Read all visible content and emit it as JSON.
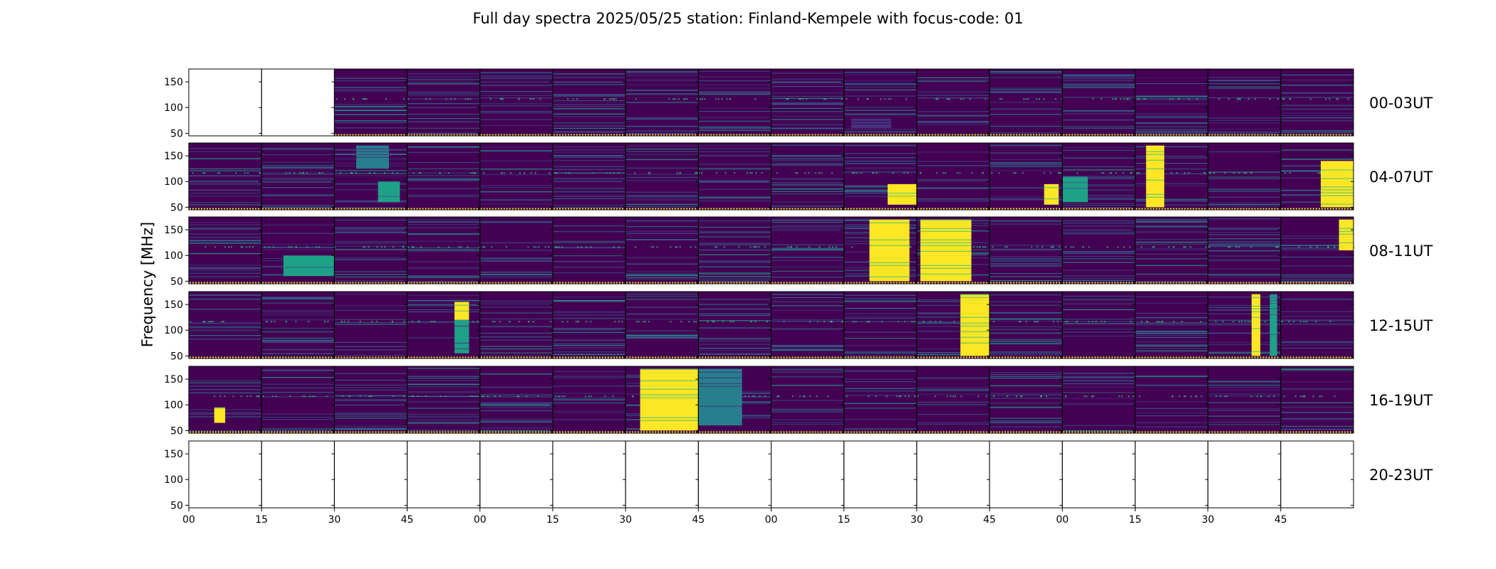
{
  "chart_data": {
    "type": "heatmap",
    "title": "Full day spectra 2025/05/25 station: Finland-Kempele with focus-code: 01",
    "ylabel": "Frequency [MHz]",
    "ylim": [
      45,
      175
    ],
    "y_ticks": [
      "150",
      "100",
      "50"
    ],
    "y_tick_values": [
      150,
      100,
      50
    ],
    "x_ticks": [
      "00",
      "15",
      "30",
      "45",
      "00",
      "15",
      "30",
      "45",
      "00",
      "15",
      "30",
      "45",
      "00",
      "15",
      "30",
      "45"
    ],
    "colormap": "viridis",
    "colors": {
      "low": "#440154",
      "mid": "#31688e",
      "teal": "#21918c",
      "green": "#35b779",
      "high": "#fde725"
    },
    "rows": [
      {
        "label": "00-03UT",
        "panels": [
          0,
          0,
          1,
          1,
          1,
          1,
          1,
          1,
          1,
          1,
          1,
          1,
          1,
          1,
          1,
          1
        ],
        "bursts": [
          {
            "panel": 9,
            "start": 0.1,
            "end": 0.65,
            "fmin": 60,
            "fmax": 80,
            "intensity": 0.15
          }
        ]
      },
      {
        "label": "04-07UT",
        "panels": [
          1,
          1,
          1,
          1,
          1,
          1,
          1,
          1,
          1,
          1,
          1,
          1,
          1,
          1,
          1,
          1
        ],
        "bursts": [
          {
            "panel": 2,
            "start": 0.3,
            "end": 0.75,
            "fmin": 125,
            "fmax": 170,
            "intensity": 0.45
          },
          {
            "panel": 2,
            "start": 0.6,
            "end": 0.9,
            "fmin": 60,
            "fmax": 100,
            "intensity": 0.55
          },
          {
            "panel": 9,
            "start": 0.6,
            "end": 1.0,
            "fmin": 55,
            "fmax": 95,
            "intensity": 1.0
          },
          {
            "panel": 11,
            "start": 0.75,
            "end": 0.95,
            "fmin": 55,
            "fmax": 95,
            "intensity": 1.0
          },
          {
            "panel": 12,
            "start": 0.0,
            "end": 0.35,
            "fmin": 60,
            "fmax": 110,
            "intensity": 0.55
          },
          {
            "panel": 13,
            "start": 0.15,
            "end": 0.4,
            "fmin": 50,
            "fmax": 170,
            "intensity": 1.0
          },
          {
            "panel": 15,
            "start": 0.55,
            "end": 1.0,
            "fmin": 50,
            "fmax": 140,
            "intensity": 1.0
          }
        ]
      },
      {
        "label": "08-11UT",
        "panels": [
          1,
          1,
          1,
          1,
          1,
          1,
          1,
          1,
          1,
          1,
          1,
          1,
          1,
          1,
          1,
          1
        ],
        "bursts": [
          {
            "panel": 1,
            "start": 0.3,
            "end": 1.0,
            "fmin": 60,
            "fmax": 100,
            "intensity": 0.6
          },
          {
            "panel": 9,
            "start": 0.35,
            "end": 0.9,
            "fmin": 50,
            "fmax": 170,
            "intensity": 1.0
          },
          {
            "panel": 10,
            "start": 0.05,
            "end": 0.75,
            "fmin": 50,
            "fmax": 170,
            "intensity": 1.0
          },
          {
            "panel": 15,
            "start": 0.8,
            "end": 1.0,
            "fmin": 110,
            "fmax": 170,
            "intensity": 1.0
          }
        ]
      },
      {
        "label": "12-15UT",
        "panels": [
          1,
          1,
          1,
          1,
          1,
          1,
          1,
          1,
          1,
          1,
          1,
          1,
          1,
          1,
          1,
          1
        ],
        "bursts": [
          {
            "panel": 3,
            "start": 0.65,
            "end": 0.85,
            "fmin": 120,
            "fmax": 155,
            "intensity": 1.0
          },
          {
            "panel": 3,
            "start": 0.65,
            "end": 0.85,
            "fmin": 55,
            "fmax": 120,
            "intensity": 0.5
          },
          {
            "panel": 10,
            "start": 0.6,
            "end": 1.0,
            "fmin": 50,
            "fmax": 170,
            "intensity": 1.0
          },
          {
            "panel": 14,
            "start": 0.6,
            "end": 0.72,
            "fmin": 50,
            "fmax": 170,
            "intensity": 1.0
          },
          {
            "panel": 14,
            "start": 0.85,
            "end": 0.95,
            "fmin": 50,
            "fmax": 170,
            "intensity": 0.6
          }
        ]
      },
      {
        "label": "16-19UT",
        "panels": [
          1,
          1,
          1,
          1,
          1,
          1,
          1,
          1,
          1,
          1,
          1,
          1,
          1,
          1,
          1,
          1
        ],
        "bursts": [
          {
            "panel": 0,
            "start": 0.35,
            "end": 0.5,
            "fmin": 65,
            "fmax": 95,
            "intensity": 1.0
          },
          {
            "panel": 6,
            "start": 0.2,
            "end": 1.0,
            "fmin": 50,
            "fmax": 170,
            "intensity": 1.0
          },
          {
            "panel": 7,
            "start": 0.0,
            "end": 0.6,
            "fmin": 60,
            "fmax": 170,
            "intensity": 0.4
          }
        ]
      },
      {
        "label": "20-23UT",
        "panels": [
          0,
          0,
          0,
          0,
          0,
          0,
          0,
          0,
          0,
          0,
          0,
          0,
          0,
          0,
          0,
          0
        ],
        "bursts": []
      }
    ]
  }
}
